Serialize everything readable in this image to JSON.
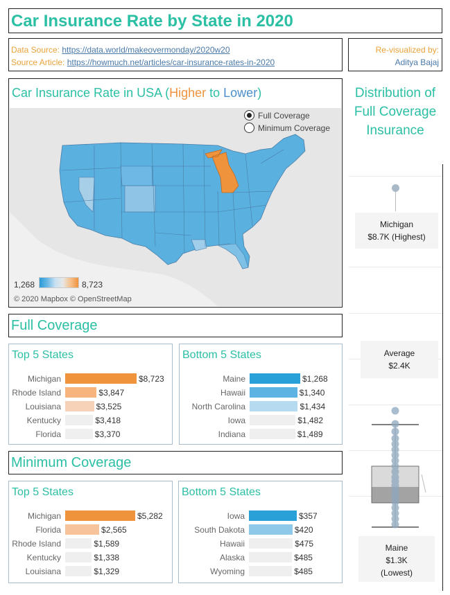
{
  "header": {
    "title": "Car Insurance Rate by State in 2020",
    "data_source_label": "Data Source: ",
    "data_source_url": "https://data.world/makeovermonday/2020w20",
    "source_article_label": "Source Article: ",
    "source_article_url": "https://howmuch.net/articles/car-insurance-rates-in-2020",
    "revisualized_label": "Re-visualized by:",
    "author": "Aditya Bajaj"
  },
  "map": {
    "title_prefix": "Car Insurance Rate in USA (",
    "title_higher": "Higher",
    "title_to": " to ",
    "title_lower": "Lower",
    "title_suffix": ")",
    "radio_full": "Full Coverage",
    "radio_min": "Minimum Coverage",
    "legend_min": "1,268",
    "legend_max": "8,723",
    "attribution": "© 2020 Mapbox © OpenStreetMap",
    "highlight_color": "#f0933d",
    "base_color": "#4aa8dc"
  },
  "distribution": {
    "title": "Distribution of Full Coverage Insurance",
    "highest_name": "Michigan",
    "highest_value": "$8.7K (Highest)",
    "average_name": "Average",
    "average_value": "$2.4K",
    "lowest_name": "Maine",
    "lowest_value": "$1.3K",
    "lowest_tag": "(Lowest)"
  },
  "full_coverage": {
    "title": "Full Coverage",
    "top": {
      "title": "Top 5 States",
      "rows": [
        {
          "state": "Michigan",
          "value": "$8,723",
          "amount": 8723,
          "color": "#f0933d"
        },
        {
          "state": "Rhode Island",
          "value": "$3,847",
          "amount": 3847,
          "color": "#f7b47d"
        },
        {
          "state": "Louisiana",
          "value": "$3,525",
          "amount": 3525,
          "color": "#f6d3b8"
        },
        {
          "state": "Kentucky",
          "value": "$3,418",
          "amount": 3418,
          "color": "#efefef"
        },
        {
          "state": "Florida",
          "value": "$3,370",
          "amount": 3370,
          "color": "#efefef"
        }
      ]
    },
    "bottom": {
      "title": "Bottom 5 States",
      "rows": [
        {
          "state": "Maine",
          "value": "$1,268",
          "amount": 1268,
          "color": "#2aa0d8"
        },
        {
          "state": "Hawaii",
          "value": "$1,340",
          "amount": 1340,
          "color": "#5db4e2"
        },
        {
          "state": "North Carolina",
          "value": "$1,434",
          "amount": 1434,
          "color": "#b6dbf0"
        },
        {
          "state": "Iowa",
          "value": "$1,482",
          "amount": 1482,
          "color": "#efefef"
        },
        {
          "state": "Indiana",
          "value": "$1,489",
          "amount": 1489,
          "color": "#efefef"
        }
      ]
    }
  },
  "minimum_coverage": {
    "title": "Minimum Coverage",
    "top": {
      "title": "Top 5 States",
      "rows": [
        {
          "state": "Michigan",
          "value": "$5,282",
          "amount": 5282,
          "color": "#f0933d"
        },
        {
          "state": "Florida",
          "value": "$2,565",
          "amount": 2565,
          "color": "#f7c39b"
        },
        {
          "state": "Rhode Island",
          "value": "$1,589",
          "amount": 1589,
          "color": "#efefef"
        },
        {
          "state": "Kentucky",
          "value": "$1,338",
          "amount": 1338,
          "color": "#efefef"
        },
        {
          "state": "Louisiana",
          "value": "$1,329",
          "amount": 1329,
          "color": "#efefef"
        }
      ]
    },
    "bottom": {
      "title": "Bottom 5 States",
      "rows": [
        {
          "state": "Iowa",
          "value": "$357",
          "amount": 357,
          "color": "#2aa0d8"
        },
        {
          "state": "South Dakota",
          "value": "$420",
          "amount": 420,
          "color": "#8ec9ea"
        },
        {
          "state": "Hawaii",
          "value": "$475",
          "amount": 475,
          "color": "#efefef"
        },
        {
          "state": "Alaska",
          "value": "$485",
          "amount": 485,
          "color": "#efefef"
        },
        {
          "state": "Wyoming",
          "value": "$485",
          "amount": 485,
          "color": "#efefef"
        }
      ]
    }
  }
}
